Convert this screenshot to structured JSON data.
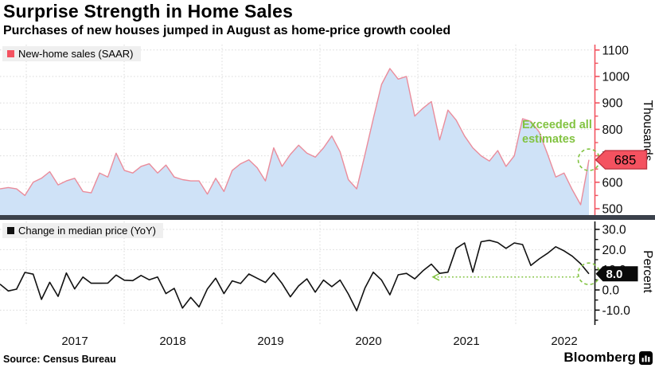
{
  "title": "Surprise Strength in Home Sales",
  "subtitle": "Purchases of new houses jumped in August as home-price growth cooled",
  "source": "Source: Census Bureau",
  "brand": "Bloomberg",
  "colors": {
    "sales_line": "#ea8c9b",
    "sales_fill": "#cfe2f7",
    "sales_axis": "#f25460",
    "sales_tag_fill": "#f45260",
    "sales_tag_border": "#bd3542",
    "price_line": "#111111",
    "price_axis": "#111111",
    "price_tag_fill": "#0a0a0a",
    "annotation_green": "#82c341",
    "gridline": "#d9d9d9",
    "divider": "#3b414b",
    "legend_bg": "#efefef"
  },
  "annotations": {
    "exceeded_line1": "Exceeded all",
    "exceeded_line2": "estimates"
  },
  "x_year_labels": [
    "2017",
    "2018",
    "2019",
    "2020",
    "2021",
    "2022"
  ],
  "chart_data": [
    {
      "type": "area",
      "panel": "top",
      "legend": "New-home sales (SAAR)",
      "unit_label": "Thousands",
      "x_start": "2016-09",
      "x_end": "2022-08",
      "frequency": "monthly",
      "ylim": [
        470,
        1120
      ],
      "yticks": [
        500,
        600,
        700,
        800,
        900,
        1000,
        1100
      ],
      "ytick_labels": [
        "500",
        "600",
        "700",
        "800",
        "900",
        "1000",
        "1100"
      ],
      "grid": "dotted",
      "legend_position": "top-left",
      "last_value_label": "685",
      "values": [
        575,
        580,
        575,
        550,
        600,
        615,
        640,
        590,
        605,
        615,
        565,
        560,
        635,
        620,
        710,
        645,
        635,
        660,
        670,
        635,
        665,
        620,
        610,
        605,
        605,
        555,
        615,
        565,
        645,
        670,
        685,
        655,
        605,
        730,
        660,
        705,
        740,
        710,
        695,
        730,
        775,
        715,
        610,
        575,
        705,
        840,
        970,
        1030,
        990,
        1000,
        850,
        880,
        905,
        760,
        873,
        835,
        775,
        730,
        700,
        680,
        720,
        660,
        700,
        840,
        830,
        790,
        707,
        620,
        635,
        571,
        515,
        685
      ]
    },
    {
      "type": "line",
      "panel": "bottom",
      "legend": "Change in median price (YoY)",
      "unit_label": "Percent",
      "x_start": "2016-09",
      "x_end": "2022-08",
      "frequency": "monthly",
      "ylim": [
        -19,
        34
      ],
      "yticks": [
        -10,
        0,
        10,
        20,
        30
      ],
      "ytick_labels": [
        "-10.0",
        "0.0",
        "10.0",
        "20.0",
        "30.0"
      ],
      "grid": "dotted",
      "legend_position": "top-left",
      "last_value_label": "8.0",
      "values": [
        2.9,
        -0.5,
        0.4,
        8.7,
        7.8,
        -4.7,
        3.8,
        -3.2,
        8.4,
        0.5,
        6.4,
        3.3,
        3.3,
        3.4,
        7.4,
        4.8,
        4.6,
        7.2,
        5.0,
        6.4,
        -1.8,
        0.8,
        -9.0,
        -3.7,
        -8.4,
        0.5,
        5.8,
        -1.8,
        4.5,
        3.2,
        7.9,
        5.8,
        3.7,
        8.5,
        3.2,
        -3.4,
        2.0,
        5.5,
        -1.1,
        4.9,
        1.6,
        4.9,
        -2.0,
        -10.3,
        1.0,
        8.8,
        4.9,
        -2.4,
        7.5,
        8.2,
        5.5,
        9.5,
        12.8,
        8.2,
        8.8,
        20.6,
        23.3,
        8.8,
        23.9,
        24.6,
        23.5,
        20.6,
        23.3,
        22.5,
        12.1,
        15.4,
        18.1,
        21.4,
        19.4,
        16.7,
        13.0,
        8.0
      ]
    }
  ]
}
